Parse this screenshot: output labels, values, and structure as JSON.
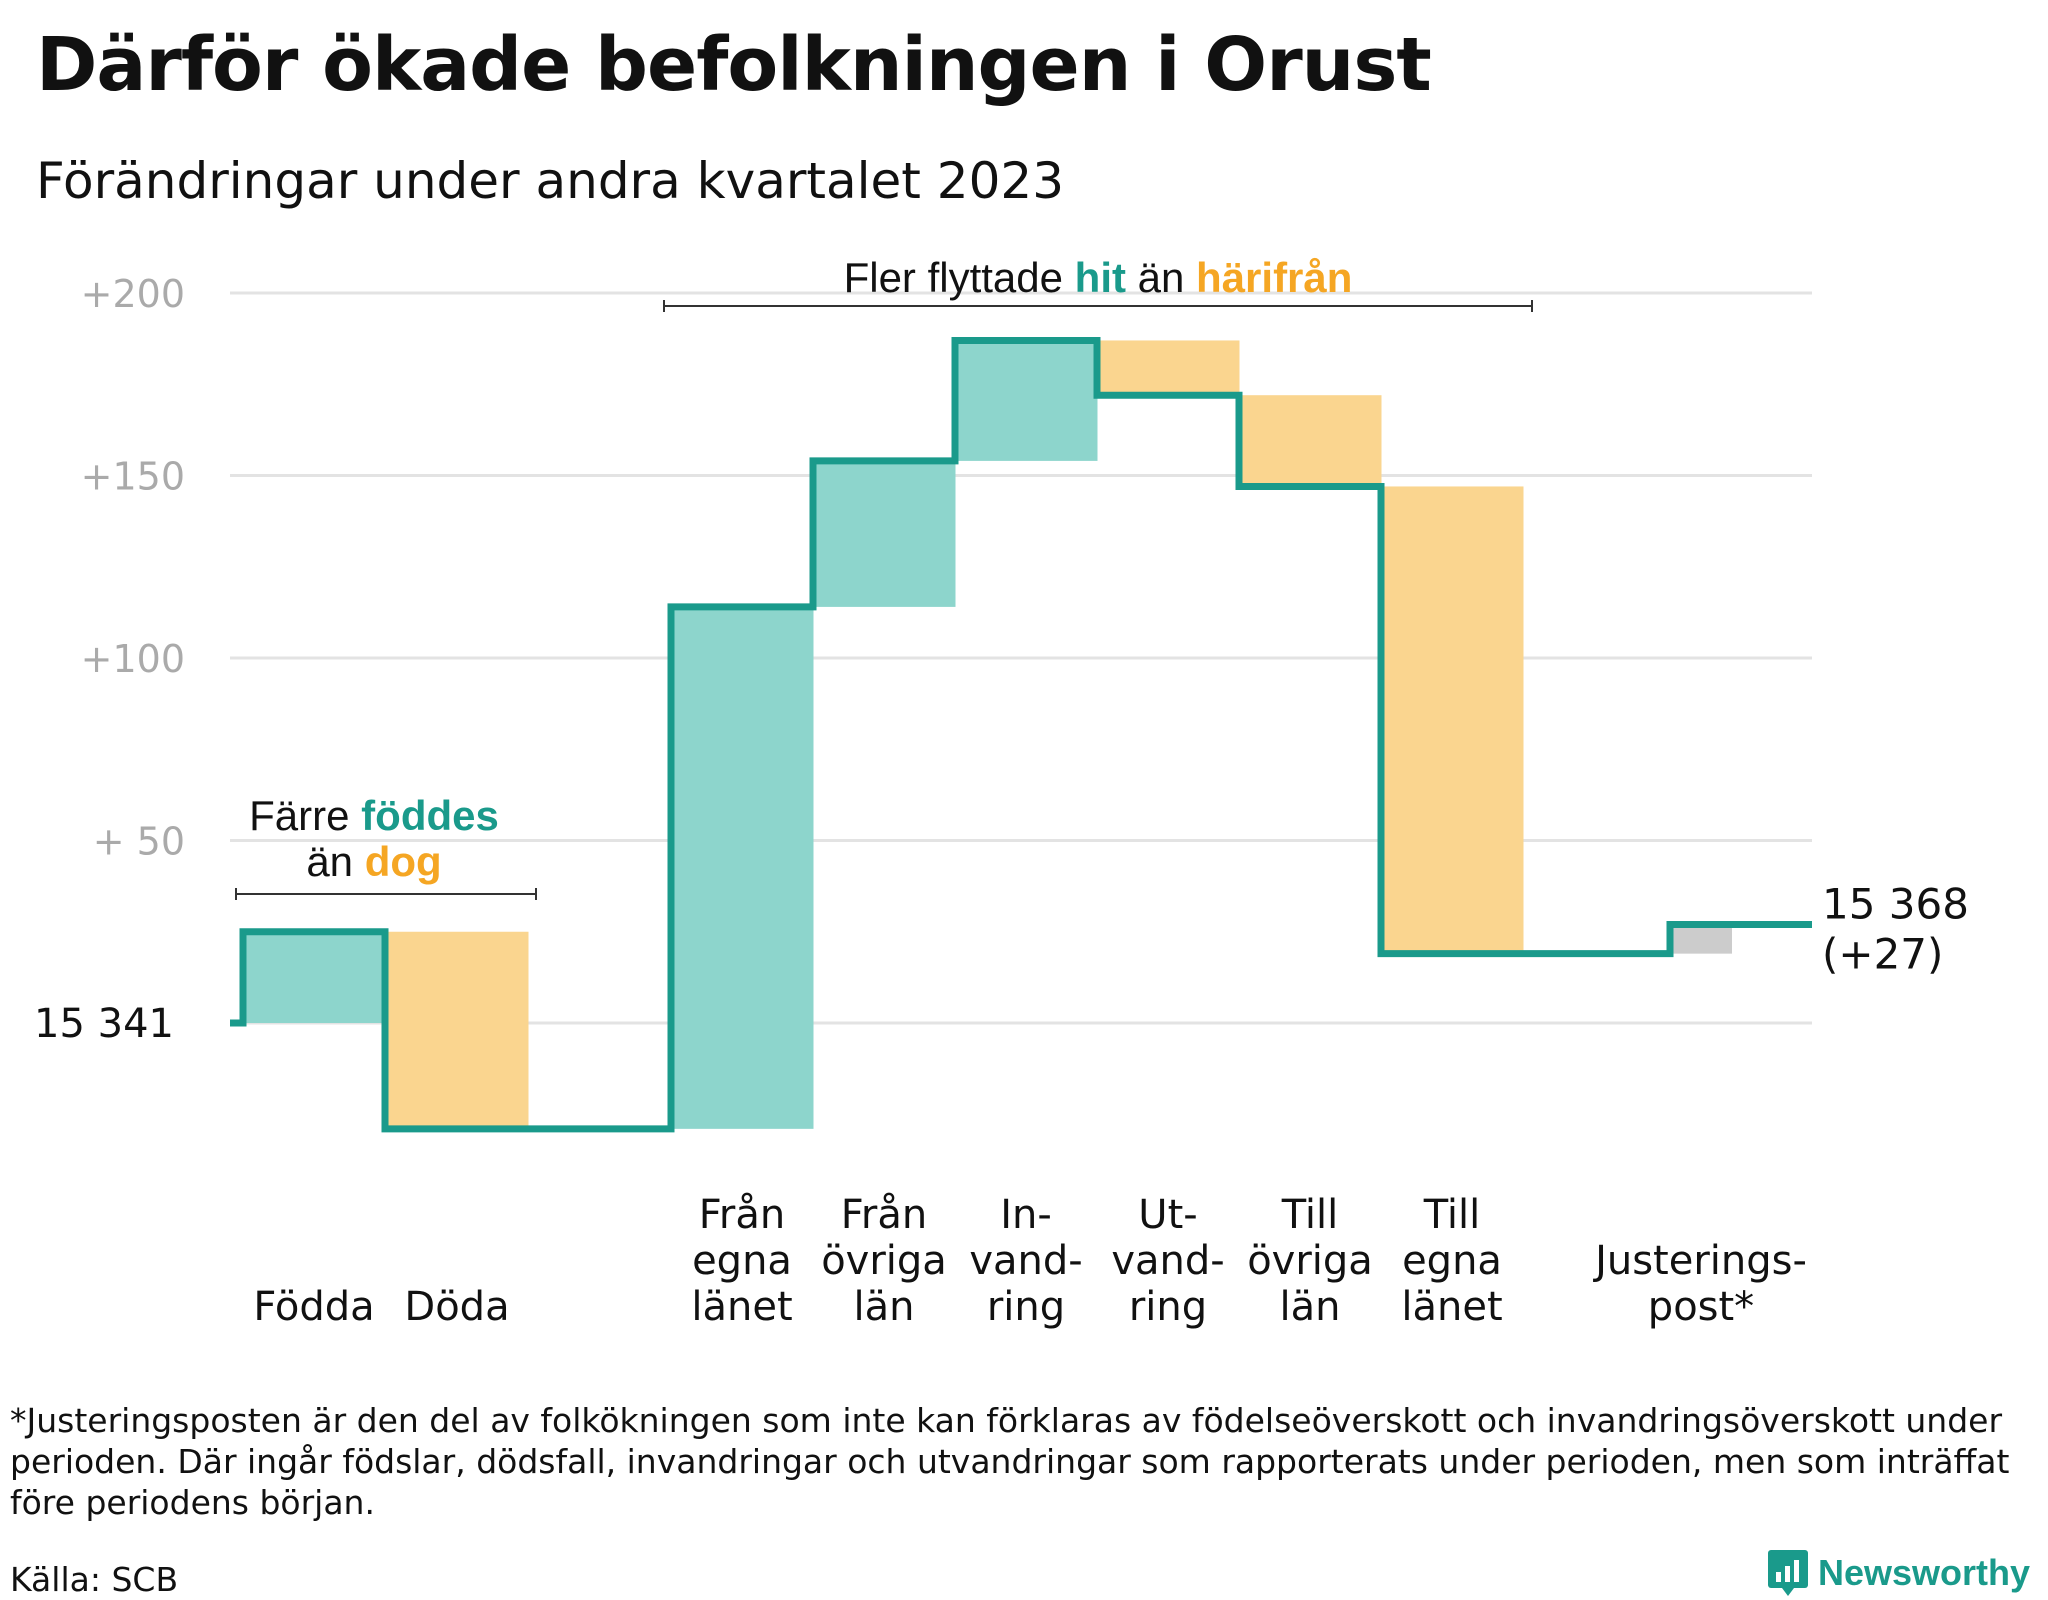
{
  "title": "Därför ökade befolkningen i Orust",
  "subtitle": "Förändringar under andra kvartalet 2023",
  "chart_data": {
    "type": "waterfall",
    "baseline_label": "15 341",
    "end_label_total": "15 368",
    "end_label_change": "(+27)",
    "y_tick_labels": [
      "+200",
      "+150",
      "+100",
      "+  50"
    ],
    "y_ticks": [
      200,
      150,
      100,
      50
    ],
    "ylim": [
      -40,
      210
    ],
    "grid": true,
    "steps": [
      {
        "label_lines": [
          "Födda"
        ],
        "value": 25
      },
      {
        "label_lines": [
          "Döda"
        ],
        "value": -54
      },
      {
        "label_lines": [
          "Från",
          "egna",
          "länet"
        ],
        "value": 143
      },
      {
        "label_lines": [
          "Från",
          "övriga",
          "län"
        ],
        "value": 40
      },
      {
        "label_lines": [
          "In-",
          "vand-",
          "ring"
        ],
        "value": 33
      },
      {
        "label_lines": [
          "Ut-",
          "vand-",
          "ring"
        ],
        "value": -15
      },
      {
        "label_lines": [
          "Till",
          "övriga",
          "län"
        ],
        "value": -25
      },
      {
        "label_lines": [
          "Till",
          "egna",
          "länet"
        ],
        "value": -128
      },
      {
        "label_lines": [
          "Justerings-",
          "post*"
        ],
        "value": 8
      }
    ],
    "annotations": [
      {
        "parts": [
          {
            "text": "Färre ",
            "tone": "plain"
          },
          {
            "text": "föddes",
            "tone": "pos"
          }
        ],
        "parts2": [
          {
            "text": "än ",
            "tone": "plain"
          },
          {
            "text": "dog",
            "tone": "neg"
          }
        ]
      },
      {
        "parts": [
          {
            "text": "Fler flyttade ",
            "tone": "plain"
          },
          {
            "text": "hit",
            "tone": "pos"
          },
          {
            "text": " än ",
            "tone": "plain"
          },
          {
            "text": "härifrån",
            "tone": "neg"
          }
        ]
      }
    ],
    "colors": {
      "positive_fill": "#8dd5cc",
      "negative_fill": "#fad58f",
      "adjust_fill": "#cccccc",
      "line": "#1a9a8b",
      "pos_text": "#1a9a8b",
      "neg_text": "#f5a623",
      "grid": "#e3e3e3",
      "tick_text": "#aaaaaa"
    }
  },
  "footnote": "*Justeringsposten är den del av folkökningen som inte kan förklaras av födelseöverskott och invandringsöverskott under perioden. Där ingår födslar, dödsfall, invandringar och utvandringar som rapporterats under perioden, men som inträffat före periodens början.",
  "source": "Källa: SCB",
  "brand": "Newsworthy"
}
